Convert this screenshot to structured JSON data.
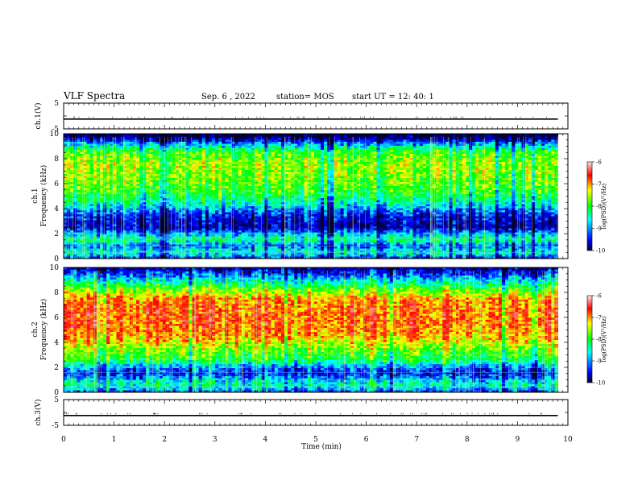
{
  "header": {
    "title": "VLF Spectra",
    "date": "Sep. 6 , 2022",
    "station": "station= MOS",
    "start": "start UT =   12: 40: 1"
  },
  "chart_data": [
    {
      "type": "line",
      "panel": "ch1-waveform",
      "ylabel": "ch.1(V)",
      "ylim": [
        -5,
        5
      ],
      "yticks": [
        5,
        -5
      ],
      "xlim": [
        0,
        10
      ],
      "series_value": -1.2
    },
    {
      "type": "heatmap",
      "panel": "ch1-spectrogram",
      "ylabel": [
        "ch.1",
        "Frequency (kHz)"
      ],
      "ylim": [
        0,
        10
      ],
      "yticks": [
        0,
        2,
        4,
        6,
        8,
        10
      ],
      "xlim": [
        0,
        10
      ],
      "data_end_min": 9.8,
      "colorbar": {
        "label": "log(PSD)(V²/Hz)",
        "range": [
          -10,
          -6
        ],
        "ticks": [
          "-6",
          "-7",
          "-8",
          "-9",
          "-10"
        ]
      },
      "profile": [
        {
          "f": 0.0,
          "v": -9.3
        },
        {
          "f": 0.5,
          "v": -8.4
        },
        {
          "f": 1.0,
          "v": -9.1
        },
        {
          "f": 1.5,
          "v": -8.2
        },
        {
          "f": 2.0,
          "v": -8.9
        },
        {
          "f": 2.5,
          "v": -9.6
        },
        {
          "f": 3.5,
          "v": -9.3
        },
        {
          "f": 4.5,
          "v": -8.4
        },
        {
          "f": 5.5,
          "v": -7.9
        },
        {
          "f": 6.5,
          "v": -7.7
        },
        {
          "f": 7.5,
          "v": -7.6
        },
        {
          "f": 8.5,
          "v": -7.9
        },
        {
          "f": 9.2,
          "v": -8.9
        },
        {
          "f": 9.7,
          "v": -9.9
        },
        {
          "f": 10.0,
          "v": -10.0
        }
      ]
    },
    {
      "type": "heatmap",
      "panel": "ch2-spectrogram",
      "ylabel": [
        "ch.2",
        "Frequency (kHz)"
      ],
      "ylim": [
        0,
        10
      ],
      "yticks": [
        0,
        2,
        4,
        6,
        8,
        10
      ],
      "xlim": [
        0,
        10
      ],
      "data_end_min": 9.8,
      "colorbar": {
        "label": "log(PSD)(V²/Hz)",
        "range": [
          -10,
          -6
        ],
        "ticks": [
          "-6",
          "-7",
          "-8",
          "-9",
          "-10"
        ]
      },
      "profile": [
        {
          "f": 0.0,
          "v": -9.2
        },
        {
          "f": 0.5,
          "v": -8.3
        },
        {
          "f": 1.0,
          "v": -8.7
        },
        {
          "f": 1.5,
          "v": -9.3
        },
        {
          "f": 2.0,
          "v": -8.9
        },
        {
          "f": 2.5,
          "v": -8.1
        },
        {
          "f": 3.5,
          "v": -7.6
        },
        {
          "f": 4.5,
          "v": -7.0
        },
        {
          "f": 5.5,
          "v": -6.8
        },
        {
          "f": 6.5,
          "v": -6.8
        },
        {
          "f": 7.5,
          "v": -7.0
        },
        {
          "f": 8.3,
          "v": -7.8
        },
        {
          "f": 9.0,
          "v": -8.6
        },
        {
          "f": 9.6,
          "v": -9.3
        },
        {
          "f": 10.0,
          "v": -9.6
        }
      ]
    },
    {
      "type": "line",
      "panel": "ch3-waveform",
      "ylabel": "ch.3(V)",
      "ylim": [
        -5,
        5
      ],
      "yticks": [
        5,
        -5
      ],
      "xlim": [
        0,
        10
      ],
      "series_value": -1.2
    }
  ],
  "xaxis": {
    "label": "Time (min)",
    "ticks": [
      "0",
      "1",
      "2",
      "3",
      "4",
      "5",
      "6",
      "7",
      "8",
      "9",
      "10"
    ]
  },
  "colors": {
    "colormap": [
      "#000033",
      "#0000ff",
      "#00ffff",
      "#00ff00",
      "#ffff00",
      "#ff0000",
      "#ffc0c0"
    ]
  }
}
